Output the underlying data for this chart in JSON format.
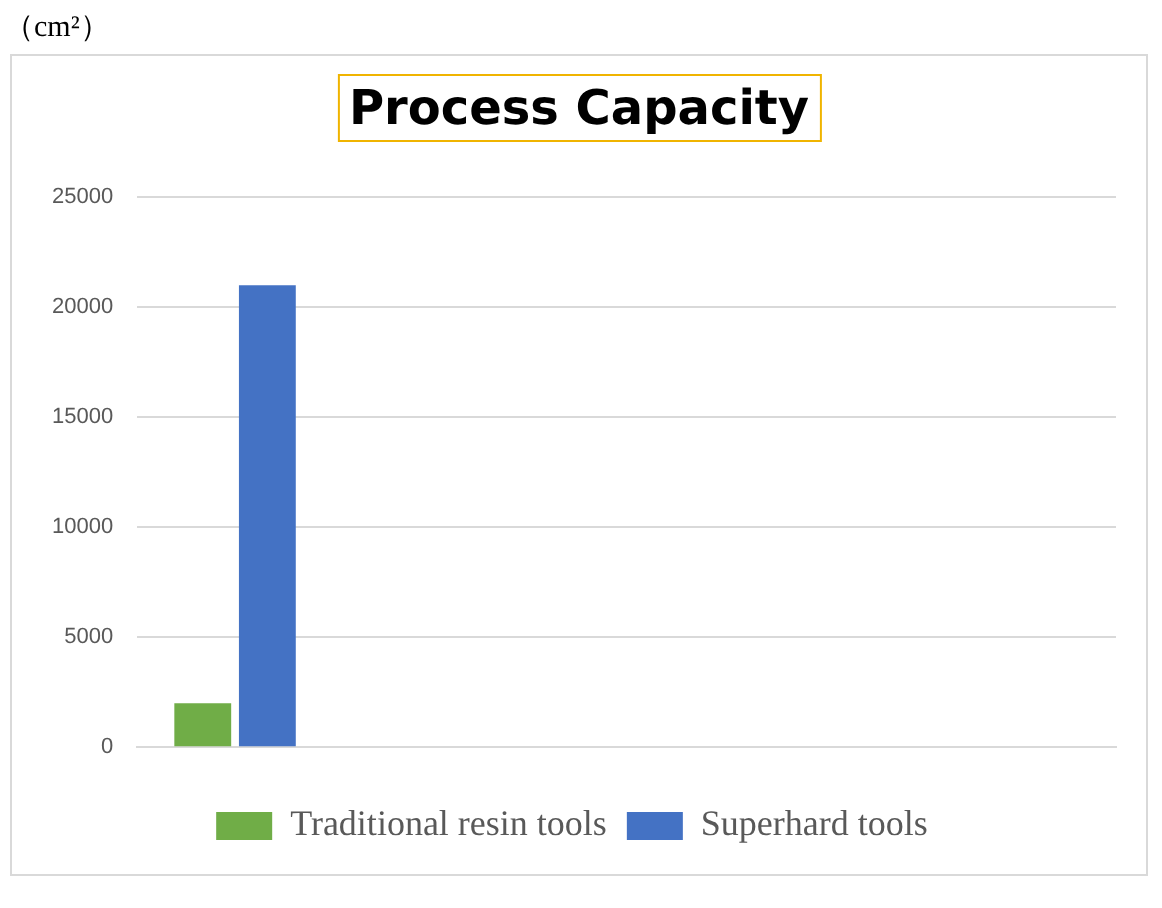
{
  "chart_data": {
    "type": "bar",
    "title": "Process Capacity",
    "ylabel": "（cm²）",
    "categories": [
      null,
      null,
      null,
      null,
      null
    ],
    "series": [
      {
        "name": "Traditional resin tools",
        "color": "#70ad47",
        "values": [
          2000,
          null,
          null,
          null,
          null
        ]
      },
      {
        "name": "Superhard tools",
        "color": "#4472c4",
        "values": [
          21000,
          null,
          null,
          null,
          null
        ]
      }
    ],
    "ylim": [
      0,
      25000
    ],
    "yticks": [
      0,
      5000,
      10000,
      15000,
      20000,
      25000
    ],
    "grid": "y",
    "legend": "bottom"
  }
}
